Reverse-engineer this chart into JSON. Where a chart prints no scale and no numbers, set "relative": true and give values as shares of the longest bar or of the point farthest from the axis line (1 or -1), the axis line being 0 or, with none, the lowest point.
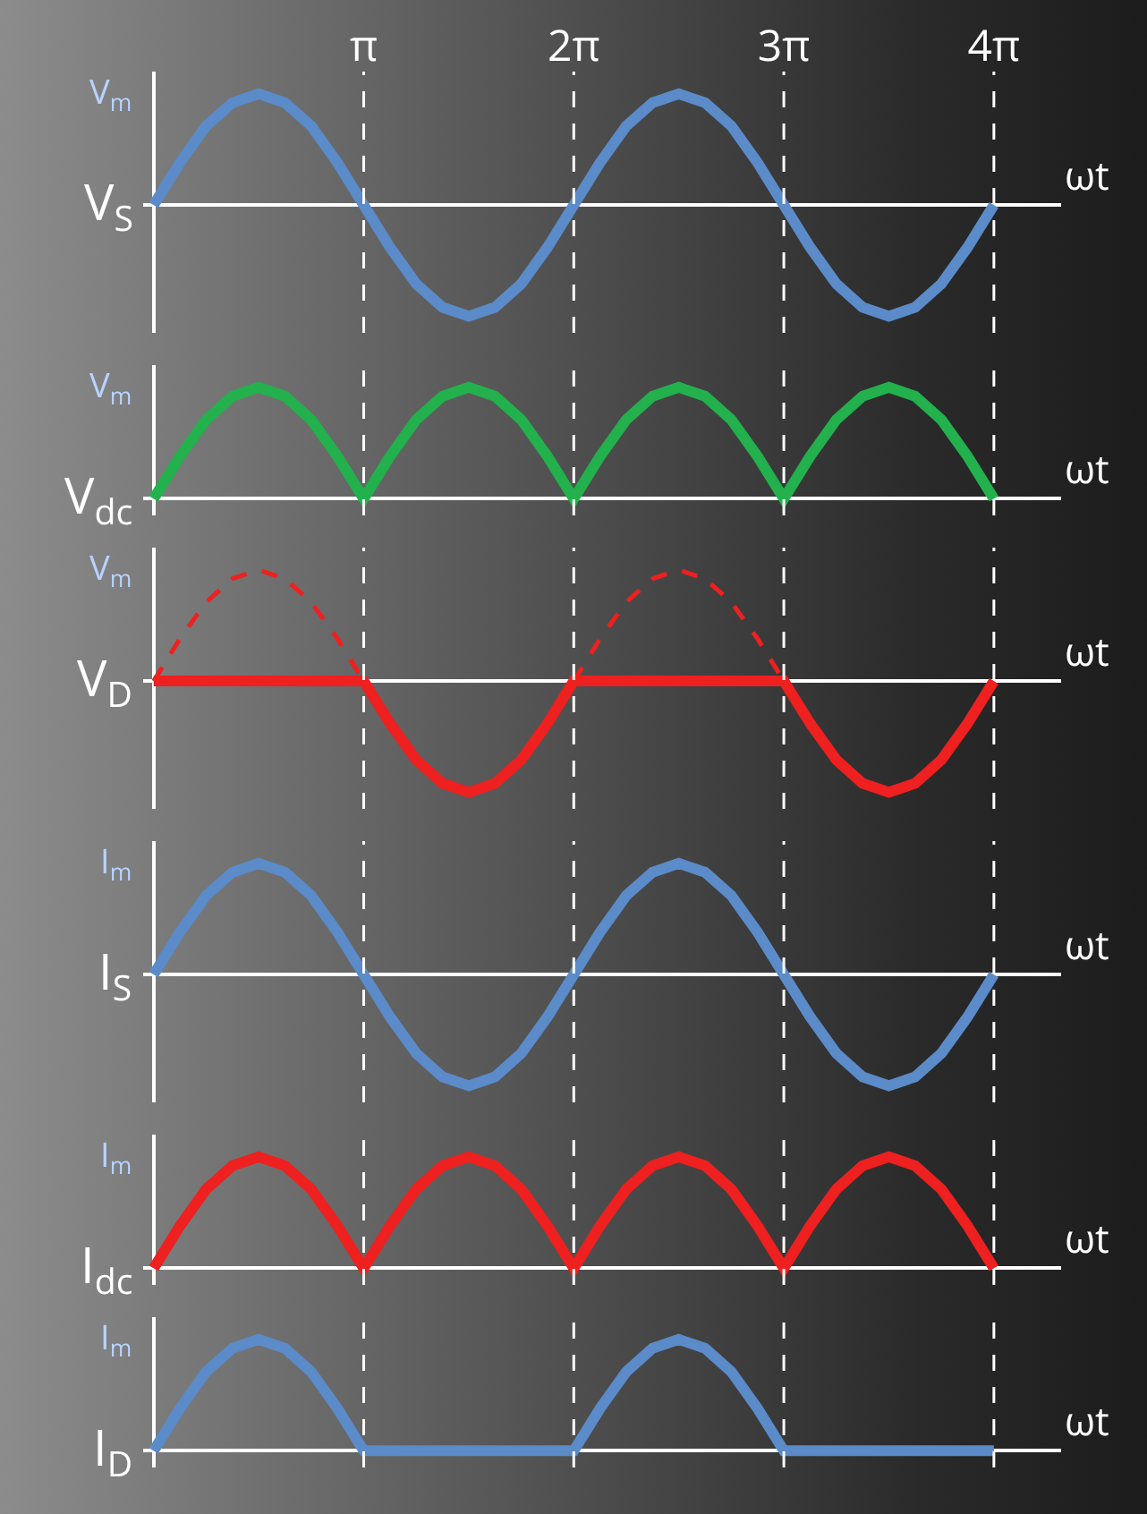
{
  "chart_data": [
    {
      "type": "line",
      "relative": true,
      "ylabel": "V$_{S}$",
      "xlabel": "ωt",
      "tick_labels": "x",
      "grid": false,
      "marker": "none",
      "annotations": [
        "V$_{m}$"
      ],
      "ref_lines": [
        {
          "axis": "x",
          "value": "π",
          "color": "#ffffff",
          "line_style": "dashed"
        },
        {
          "axis": "x",
          "value": "2π",
          "color": "#ffffff",
          "line_style": "dashed"
        },
        {
          "axis": "x",
          "value": "3π",
          "color": "#ffffff",
          "line_style": "dashed"
        },
        {
          "axis": "x",
          "value": "4π",
          "color": "#ffffff",
          "line_style": "dashed"
        }
      ],
      "categories": [
        null,
        null,
        null,
        null,
        null,
        null,
        null,
        null,
        "π",
        null,
        null,
        null,
        null,
        null,
        null,
        null,
        "2π",
        null,
        null,
        null,
        null,
        null,
        null,
        null,
        "3π",
        null,
        null,
        null,
        null,
        null,
        null,
        null,
        "4π"
      ],
      "series": [
        {
          "color": "#5b8bc9",
          "line_style": "solid",
          "values": [
            0,
            0.38,
            0.71,
            0.92,
            1,
            0.92,
            0.71,
            0.38,
            0,
            -0.38,
            -0.71,
            -0.92,
            -1,
            -0.92,
            -0.71,
            -0.38,
            0,
            0.38,
            0.71,
            0.92,
            1,
            0.92,
            0.71,
            0.38,
            0,
            -0.38,
            -0.71,
            -0.92,
            -1,
            -0.92,
            -0.71,
            -0.38,
            0
          ]
        }
      ]
    },
    {
      "type": "line",
      "relative": true,
      "ylabel": "V$_{dc}$",
      "xlabel": "ωt",
      "tick_labels": false,
      "grid": false,
      "marker": "none",
      "annotations": [
        "V$_{m}$"
      ],
      "ref_lines": [
        {
          "axis": "x",
          "value": "π",
          "color": "#ffffff",
          "line_style": "dashed"
        },
        {
          "axis": "x",
          "value": "2π",
          "color": "#ffffff",
          "line_style": "dashed"
        },
        {
          "axis": "x",
          "value": "3π",
          "color": "#ffffff",
          "line_style": "dashed"
        },
        {
          "axis": "x",
          "value": "4π",
          "color": "#ffffff",
          "line_style": "dashed"
        }
      ],
      "categories": [
        null,
        null,
        null,
        null,
        null,
        null,
        null,
        null,
        "π",
        null,
        null,
        null,
        null,
        null,
        null,
        null,
        "2π",
        null,
        null,
        null,
        null,
        null,
        null,
        null,
        "3π",
        null,
        null,
        null,
        null,
        null,
        null,
        null,
        "4π"
      ],
      "series": [
        {
          "color": "#22b14c",
          "line_style": "solid",
          "values": [
            0,
            0.38,
            0.71,
            0.92,
            1,
            0.92,
            0.71,
            0.38,
            0,
            0.38,
            0.71,
            0.92,
            1,
            0.92,
            0.71,
            0.38,
            0,
            0.38,
            0.71,
            0.92,
            1,
            0.92,
            0.71,
            0.38,
            0,
            0.38,
            0.71,
            0.92,
            1,
            0.92,
            0.71,
            0.38,
            0
          ]
        }
      ]
    },
    {
      "type": "line",
      "relative": true,
      "ylabel": "V$_{D}$",
      "xlabel": "ωt",
      "tick_labels": false,
      "grid": false,
      "marker": "none",
      "annotations": [
        "V$_{m}$"
      ],
      "ref_lines": [
        {
          "axis": "x",
          "value": "π",
          "color": "#ffffff",
          "line_style": "dashed"
        },
        {
          "axis": "x",
          "value": "2π",
          "color": "#ffffff",
          "line_style": "dashed"
        },
        {
          "axis": "x",
          "value": "3π",
          "color": "#ffffff",
          "line_style": "dashed"
        },
        {
          "axis": "x",
          "value": "4π",
          "color": "#ffffff",
          "line_style": "dashed"
        }
      ],
      "categories": [
        null,
        null,
        null,
        null,
        null,
        null,
        null,
        null,
        "π",
        null,
        null,
        null,
        null,
        null,
        null,
        null,
        "2π",
        null,
        null,
        null,
        null,
        null,
        null,
        null,
        "3π",
        null,
        null,
        null,
        null,
        null,
        null,
        null,
        "4π"
      ],
      "series": [
        {
          "color": "#ee2020",
          "line_style": "dashed",
          "values": [
            0,
            0.38,
            0.71,
            0.92,
            1,
            0.92,
            0.71,
            0.38,
            0,
            null,
            null,
            null,
            null,
            null,
            null,
            null,
            0,
            0.38,
            0.71,
            0.92,
            1,
            0.92,
            0.71,
            0.38,
            0,
            null,
            null,
            null,
            null,
            null,
            null,
            null,
            null
          ]
        },
        {
          "color": "#ee2020",
          "line_style": "solid",
          "values": [
            0,
            0,
            0,
            0,
            0,
            0,
            0,
            0,
            0,
            -0.38,
            -0.71,
            -0.92,
            -1,
            -0.92,
            -0.71,
            -0.38,
            0,
            0,
            0,
            0,
            0,
            0,
            0,
            0,
            0,
            -0.38,
            -0.71,
            -0.92,
            -1,
            -0.92,
            -0.71,
            -0.38,
            0
          ]
        }
      ]
    },
    {
      "type": "line",
      "relative": true,
      "ylabel": "I$_{S}$",
      "xlabel": "ωt",
      "tick_labels": false,
      "grid": false,
      "marker": "none",
      "annotations": [
        "I$_{m}$"
      ],
      "ref_lines": [
        {
          "axis": "x",
          "value": "π",
          "color": "#ffffff",
          "line_style": "dashed"
        },
        {
          "axis": "x",
          "value": "2π",
          "color": "#ffffff",
          "line_style": "dashed"
        },
        {
          "axis": "x",
          "value": "3π",
          "color": "#ffffff",
          "line_style": "dashed"
        },
        {
          "axis": "x",
          "value": "4π",
          "color": "#ffffff",
          "line_style": "dashed"
        }
      ],
      "categories": [
        null,
        null,
        null,
        null,
        null,
        null,
        null,
        null,
        "π",
        null,
        null,
        null,
        null,
        null,
        null,
        null,
        "2π",
        null,
        null,
        null,
        null,
        null,
        null,
        null,
        "3π",
        null,
        null,
        null,
        null,
        null,
        null,
        null,
        "4π"
      ],
      "series": [
        {
          "color": "#5b8bc9",
          "line_style": "solid",
          "values": [
            0,
            0.38,
            0.71,
            0.92,
            1,
            0.92,
            0.71,
            0.38,
            0,
            -0.38,
            -0.71,
            -0.92,
            -1,
            -0.92,
            -0.71,
            -0.38,
            0,
            0.38,
            0.71,
            0.92,
            1,
            0.92,
            0.71,
            0.38,
            0,
            -0.38,
            -0.71,
            -0.92,
            -1,
            -0.92,
            -0.71,
            -0.38,
            0
          ]
        }
      ]
    },
    {
      "type": "line",
      "relative": true,
      "ylabel": "I$_{dc}$",
      "xlabel": "ωt",
      "tick_labels": false,
      "grid": false,
      "marker": "none",
      "annotations": [
        "I$_{m}$"
      ],
      "ref_lines": [
        {
          "axis": "x",
          "value": "π",
          "color": "#ffffff",
          "line_style": "dashed"
        },
        {
          "axis": "x",
          "value": "2π",
          "color": "#ffffff",
          "line_style": "dashed"
        },
        {
          "axis": "x",
          "value": "3π",
          "color": "#ffffff",
          "line_style": "dashed"
        },
        {
          "axis": "x",
          "value": "4π",
          "color": "#ffffff",
          "line_style": "dashed"
        }
      ],
      "categories": [
        null,
        null,
        null,
        null,
        null,
        null,
        null,
        null,
        "π",
        null,
        null,
        null,
        null,
        null,
        null,
        null,
        "2π",
        null,
        null,
        null,
        null,
        null,
        null,
        null,
        "3π",
        null,
        null,
        null,
        null,
        null,
        null,
        null,
        "4π"
      ],
      "series": [
        {
          "color": "#ee2020",
          "line_style": "solid",
          "values": [
            0,
            0.38,
            0.71,
            0.92,
            1,
            0.92,
            0.71,
            0.38,
            0,
            0.38,
            0.71,
            0.92,
            1,
            0.92,
            0.71,
            0.38,
            0,
            0.38,
            0.71,
            0.92,
            1,
            0.92,
            0.71,
            0.38,
            0,
            0.38,
            0.71,
            0.92,
            1,
            0.92,
            0.71,
            0.38,
            0
          ]
        }
      ]
    },
    {
      "type": "line",
      "relative": true,
      "ylabel": "I$_{D}$",
      "xlabel": "ωt",
      "tick_labels": false,
      "grid": false,
      "marker": "none",
      "annotations": [
        "I$_{m}$"
      ],
      "ref_lines": [
        {
          "axis": "x",
          "value": "π",
          "color": "#ffffff",
          "line_style": "dashed"
        },
        {
          "axis": "x",
          "value": "2π",
          "color": "#ffffff",
          "line_style": "dashed"
        },
        {
          "axis": "x",
          "value": "3π",
          "color": "#ffffff",
          "line_style": "dashed"
        },
        {
          "axis": "x",
          "value": "4π",
          "color": "#ffffff",
          "line_style": "dashed"
        }
      ],
      "categories": [
        null,
        null,
        null,
        null,
        null,
        null,
        null,
        null,
        "π",
        null,
        null,
        null,
        null,
        null,
        null,
        null,
        "2π",
        null,
        null,
        null,
        null,
        null,
        null,
        null,
        "3π",
        null,
        null,
        null,
        null,
        null,
        null,
        null,
        "4π"
      ],
      "series": [
        {
          "color": "#5b8bc9",
          "line_style": "solid",
          "values": [
            0,
            0.38,
            0.71,
            0.92,
            1,
            0.92,
            0.71,
            0.38,
            0,
            0,
            0,
            0,
            0,
            0,
            0,
            0,
            0,
            0.38,
            0.71,
            0.92,
            1,
            0.92,
            0.71,
            0.38,
            0,
            0,
            0,
            0,
            0,
            0,
            0,
            0,
            0
          ]
        }
      ]
    }
  ]
}
